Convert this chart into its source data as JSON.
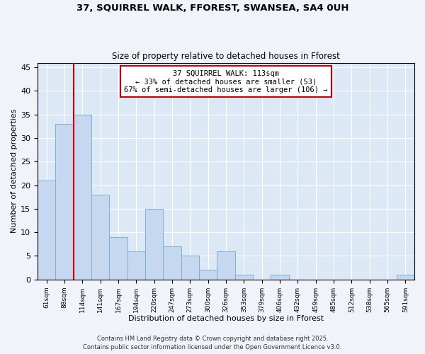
{
  "title1": "37, SQUIRREL WALK, FFOREST, SWANSEA, SA4 0UH",
  "title2": "Size of property relative to detached houses in Fforest",
  "xlabel": "Distribution of detached houses by size in Fforest",
  "ylabel": "Number of detached properties",
  "categories": [
    "61sqm",
    "88sqm",
    "114sqm",
    "141sqm",
    "167sqm",
    "194sqm",
    "220sqm",
    "247sqm",
    "273sqm",
    "300sqm",
    "326sqm",
    "353sqm",
    "379sqm",
    "406sqm",
    "432sqm",
    "459sqm",
    "485sqm",
    "512sqm",
    "538sqm",
    "565sqm",
    "591sqm"
  ],
  "values": [
    21,
    33,
    35,
    18,
    9,
    6,
    15,
    7,
    5,
    2,
    6,
    1,
    0,
    1,
    0,
    0,
    0,
    0,
    0,
    0,
    1
  ],
  "bar_color": "#c5d8ef",
  "bar_edge_color": "#7aafd4",
  "vline_color": "#cc0000",
  "annotation_text": "37 SQUIRREL WALK: 113sqm\n← 33% of detached houses are smaller (53)\n67% of semi-detached houses are larger (106) →",
  "annotation_box_facecolor": "#ffffff",
  "annotation_box_edgecolor": "#cc0000",
  "ylim": [
    0,
    46
  ],
  "yticks": [
    0,
    5,
    10,
    15,
    20,
    25,
    30,
    35,
    40,
    45
  ],
  "footer1": "Contains HM Land Registry data © Crown copyright and database right 2025.",
  "footer2": "Contains public sector information licensed under the Open Government Licence v3.0.",
  "fig_facecolor": "#f0f4fa",
  "ax_facecolor": "#dce8f5",
  "grid_color": "#ffffff"
}
